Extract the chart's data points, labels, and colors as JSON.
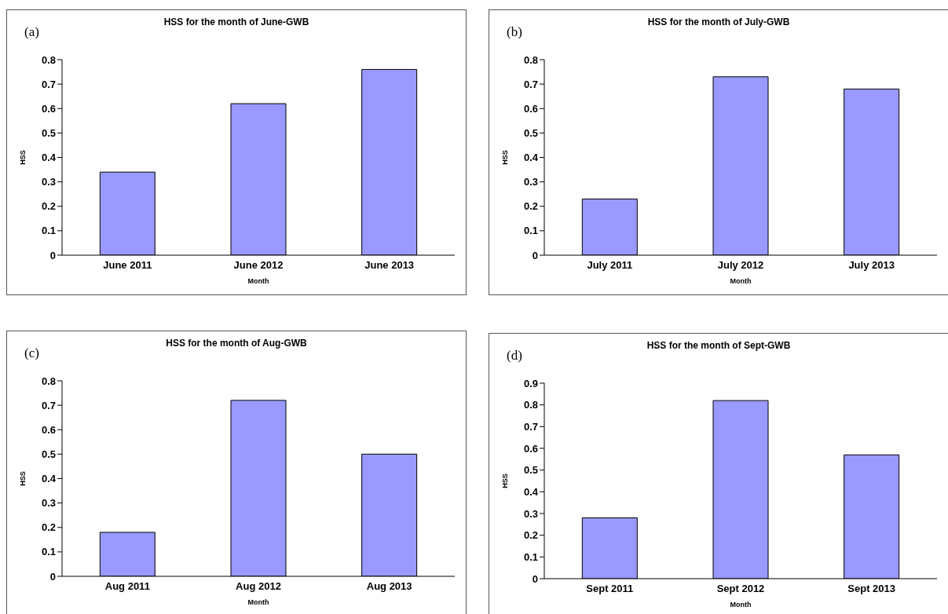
{
  "chart_data": [
    {
      "type": "bar",
      "title": "HSS for the month of June-GWB",
      "xlabel": "Month",
      "ylabel": "HSS",
      "annotations": [
        "(a)"
      ],
      "categories": [
        "June 2011",
        "June 2012",
        "June 2013"
      ],
      "values": [
        0.34,
        0.62,
        0.76
      ],
      "color": "#9999ff",
      "ylim": [
        0,
        0.8
      ],
      "yticks": [
        0,
        0.1,
        0.2,
        0.3,
        0.4,
        0.5,
        0.6,
        0.7,
        0.8
      ]
    },
    {
      "type": "bar",
      "title": "HSS for the month of July-GWB",
      "xlabel": "Month",
      "ylabel": "HSS",
      "annotations": [
        "(b)"
      ],
      "categories": [
        "July 2011",
        "July 2012",
        "July 2013"
      ],
      "values": [
        0.23,
        0.73,
        0.68
      ],
      "color": "#9999ff",
      "ylim": [
        0,
        0.8
      ],
      "yticks": [
        0,
        0.1,
        0.2,
        0.3,
        0.4,
        0.5,
        0.6,
        0.7,
        0.8
      ]
    },
    {
      "type": "bar",
      "title": "HSS for the month of Aug-GWB",
      "xlabel": "Month",
      "ylabel": "HSS",
      "annotations": [
        "(c)"
      ],
      "categories": [
        "Aug 2011",
        "Aug 2012",
        "Aug 2013"
      ],
      "values": [
        0.18,
        0.72,
        0.5
      ],
      "color": "#9999ff",
      "ylim": [
        0,
        0.8
      ],
      "yticks": [
        0,
        0.1,
        0.2,
        0.3,
        0.4,
        0.5,
        0.6,
        0.7,
        0.8
      ]
    },
    {
      "type": "bar",
      "title": "HSS for the month of Sept-GWB",
      "xlabel": "Month",
      "ylabel": "HSS",
      "annotations": [
        "(d)"
      ],
      "categories": [
        "Sept 2011",
        "Sept 2012",
        "Sept 2013"
      ],
      "values": [
        0.28,
        0.82,
        0.57
      ],
      "color": "#9999ff",
      "ylim": [
        0,
        0.9
      ],
      "yticks": [
        0,
        0.1,
        0.2,
        0.3,
        0.4,
        0.5,
        0.6,
        0.7,
        0.8,
        0.9
      ]
    }
  ]
}
